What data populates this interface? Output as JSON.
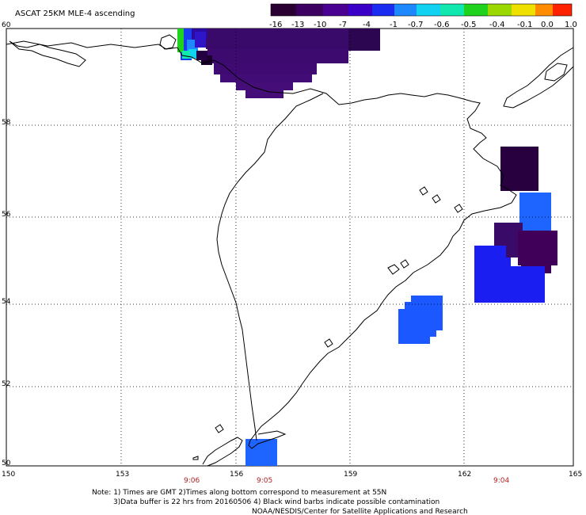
{
  "title": "ASCAT 25KM MLE-4 ascending",
  "colorbar": {
    "tick_labels": [
      "-16",
      "-13",
      "-10",
      "-7",
      "-4",
      "-1",
      "-0.7",
      "-0.6",
      "-0.5",
      "-0.4",
      "-0.1",
      "0.0",
      "1.0"
    ],
    "colors": [
      "#2a0033",
      "#3b0060",
      "#4a0090",
      "#3a00c8",
      "#1a2cf0",
      "#1e88ff",
      "#12d2f2",
      "#10e8b0",
      "#1ed21e",
      "#9ad800",
      "#f0e000",
      "#ff8c00",
      "#ff2200"
    ]
  },
  "axes": {
    "x_ticks": [
      "150",
      "153",
      "156",
      "159",
      "162",
      "165"
    ],
    "y_ticks": [
      "60",
      "58",
      "56",
      "54",
      "52",
      "50"
    ],
    "lon_range": [
      150,
      165
    ],
    "lat_range": [
      50,
      60
    ]
  },
  "time_labels": [
    "9:06",
    "9:05",
    "9:04"
  ],
  "note": {
    "line1": "Note: 1) Times are GMT 2)Times along bottom correspond to measurement at 55N",
    "line2": "3)Data buffer is 22 hrs from 20160506 4) Black wind barbs indicate possible contamination",
    "line3": "NOAA/NESDIS/Center for Satellite Applications and Research"
  },
  "swaths": [
    {
      "name": "northern-swath",
      "color": "#3a0a6a"
    },
    {
      "name": "kamchatka-upper",
      "color": "#280040"
    },
    {
      "name": "kamchatka-blue",
      "color": "#1e64ff"
    },
    {
      "name": "kamchatka-mid",
      "color": "#40005a"
    },
    {
      "name": "kamchatka-lower",
      "color": "#1a1ef0"
    },
    {
      "name": "central-blue",
      "color": "#1c58ff"
    },
    {
      "name": "southern-blue",
      "color": "#1e64ff"
    }
  ]
}
